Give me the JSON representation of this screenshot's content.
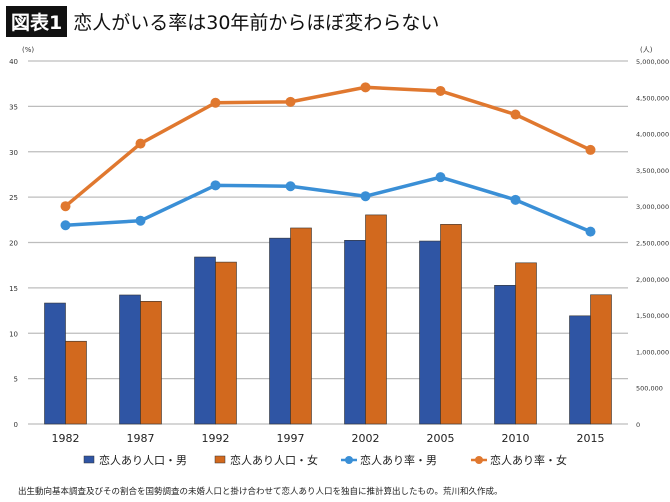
{
  "badge": "図表1",
  "title": "恋人がいる率は30年前からほぼ変わらない",
  "footnote": "出生動向基本調査及びその割合を国勢調査の未婚人口と掛け合わせて恋人あり人口を独自に推計算出したもの。荒川和久作成。",
  "chart_data": {
    "type": "bar+line",
    "categories": [
      "1982",
      "1987",
      "1992",
      "1997",
      "2002",
      "2005",
      "2010",
      "2015"
    ],
    "left_axis": {
      "unit": "(%)",
      "ylim": [
        0,
        40
      ],
      "ticks": [
        0,
        5,
        10,
        15,
        20,
        25,
        30,
        35,
        40
      ]
    },
    "right_axis": {
      "unit": "(人)",
      "ylim": [
        0,
        5000000
      ],
      "ticks": [
        "0",
        "500,000",
        "1,000,000",
        "1,500,000",
        "2,000,000",
        "2,500,000",
        "3,000,000",
        "3,500,000",
        "4,000,000",
        "4,500,000",
        "5,000,000"
      ]
    },
    "grid": true,
    "legend_position": "bottom",
    "series": [
      {
        "name": "恋人あり人口・男",
        "type": "bar",
        "axis": "right",
        "color": "#2f55a4",
        "values": [
          1666000,
          1777000,
          2300000,
          2560000,
          2530000,
          2520000,
          1910000,
          1490000
        ]
      },
      {
        "name": "恋人あり人口・女",
        "type": "bar",
        "axis": "right",
        "color": "#d2691e",
        "values": [
          1140000,
          1690000,
          2230000,
          2700000,
          2880000,
          2750000,
          2220000,
          1780000
        ]
      },
      {
        "name": "恋人あり率・男",
        "type": "line",
        "axis": "left",
        "color": "#3a8fd6",
        "values": [
          21.9,
          22.4,
          26.3,
          26.2,
          25.1,
          27.2,
          24.7,
          21.2
        ]
      },
      {
        "name": "恋人あり率・女",
        "type": "line",
        "axis": "left",
        "color": "#e0782f",
        "values": [
          24.0,
          30.9,
          35.4,
          35.5,
          37.1,
          36.7,
          34.1,
          30.2
        ]
      }
    ]
  }
}
